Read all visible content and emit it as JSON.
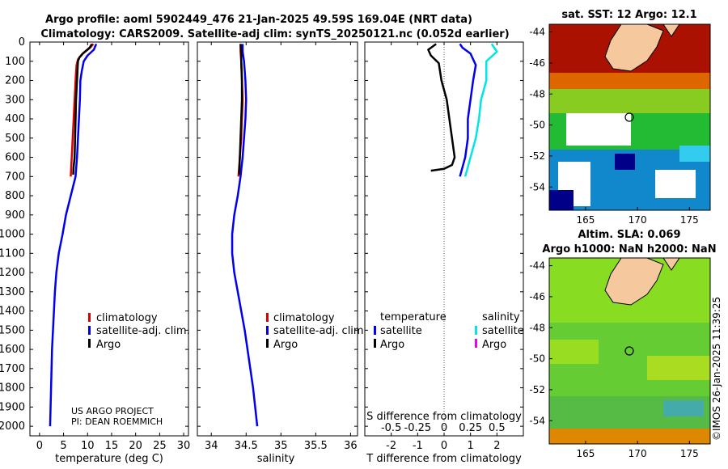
{
  "title": {
    "line1": "Argo profile: aoml 5902449_476 21-Jan-2025 49.59S 169.04E (NRT data)",
    "line2": "Climatology: CARS2009. Satellite-adj clim: synTS_20250121.nc (0.052d earlier)"
  },
  "depth_ticks": [
    "0",
    "100",
    "200",
    "300",
    "400",
    "500",
    "600",
    "700",
    "800",
    "900",
    "1000",
    "1100",
    "1200",
    "1300",
    "1400",
    "1500",
    "1600",
    "1700",
    "1800",
    "1900",
    "2000"
  ],
  "colors": {
    "climatology": "#dd0000",
    "satellite": "#0000ee",
    "argo": "#000000",
    "sat_sal": "#00e5e5",
    "argo_sal": "#ee00ee"
  },
  "credits": {
    "project": "US ARGO PROJECT",
    "pi": "PI: DEAN ROEMMICH"
  },
  "chart_data": [
    {
      "type": "line",
      "name": "temperature",
      "xlabel": "temperature (deg C)",
      "ylabel": "depth",
      "xlim": [
        -2,
        31
      ],
      "ylim": [
        2050,
        0
      ],
      "xticks": [
        "0",
        "5",
        "10",
        "15",
        "20",
        "25",
        "30"
      ],
      "legend": [
        "climatology",
        "satellite-adj. clim.",
        "Argo"
      ],
      "series": [
        {
          "name": "climatology",
          "color": "#dd0000",
          "points": [
            [
              11.2,
              10
            ],
            [
              10.5,
              30
            ],
            [
              9.0,
              60
            ],
            [
              8.0,
              90
            ],
            [
              7.7,
              120
            ],
            [
              7.5,
              200
            ],
            [
              7.3,
              300
            ],
            [
              7.1,
              400
            ],
            [
              6.9,
              500
            ],
            [
              6.7,
              600
            ],
            [
              6.5,
              700
            ]
          ]
        },
        {
          "name": "satellite-adj. clim.",
          "color": "#0000ee",
          "points": [
            [
              11.8,
              10
            ],
            [
              11.3,
              40
            ],
            [
              10.0,
              70
            ],
            [
              9.2,
              100
            ],
            [
              8.8,
              150
            ],
            [
              8.5,
              200
            ],
            [
              8.4,
              300
            ],
            [
              8.2,
              400
            ],
            [
              8.0,
              500
            ],
            [
              7.8,
              600
            ],
            [
              7.5,
              700
            ],
            [
              6.5,
              800
            ],
            [
              5.5,
              900
            ],
            [
              4.8,
              1000
            ],
            [
              4.0,
              1100
            ],
            [
              3.5,
              1200
            ],
            [
              3.2,
              1300
            ],
            [
              3.0,
              1400
            ],
            [
              2.8,
              1500
            ],
            [
              2.6,
              1600
            ],
            [
              2.5,
              1700
            ],
            [
              2.4,
              1800
            ],
            [
              2.3,
              1900
            ],
            [
              2.2,
              2000
            ]
          ]
        },
        {
          "name": "Argo",
          "color": "#000000",
          "points": [
            [
              10.9,
              10
            ],
            [
              10.4,
              30
            ],
            [
              9.0,
              60
            ],
            [
              8.3,
              80
            ],
            [
              8.0,
              100
            ],
            [
              7.9,
              150
            ],
            [
              7.8,
              200
            ],
            [
              7.6,
              300
            ],
            [
              7.5,
              400
            ],
            [
              7.4,
              500
            ],
            [
              7.3,
              600
            ],
            [
              7.1,
              650
            ],
            [
              7.0,
              690
            ]
          ]
        }
      ]
    },
    {
      "type": "line",
      "name": "salinity",
      "xlabel": "salinity",
      "ylabel": "depth",
      "xlim": [
        33.8,
        36.1
      ],
      "ylim": [
        2050,
        0
      ],
      "xticks": [
        "34",
        "34.5",
        "35",
        "35.5",
        "36"
      ],
      "legend": [
        "climatology",
        "satellite-adj. clim.",
        "Argo"
      ],
      "series": [
        {
          "name": "climatology",
          "color": "#dd0000",
          "points": [
            [
              34.42,
              10
            ],
            [
              34.42,
              50
            ],
            [
              34.43,
              100
            ],
            [
              34.44,
              200
            ],
            [
              34.45,
              300
            ],
            [
              34.44,
              400
            ],
            [
              34.43,
              500
            ],
            [
              34.41,
              600
            ],
            [
              34.39,
              700
            ]
          ]
        },
        {
          "name": "satellite-adj. clim.",
          "color": "#0000ee",
          "points": [
            [
              34.45,
              10
            ],
            [
              34.45,
              50
            ],
            [
              34.47,
              100
            ],
            [
              34.49,
              200
            ],
            [
              34.5,
              300
            ],
            [
              34.49,
              400
            ],
            [
              34.47,
              500
            ],
            [
              34.45,
              600
            ],
            [
              34.42,
              700
            ],
            [
              34.38,
              800
            ],
            [
              34.33,
              900
            ],
            [
              34.3,
              1000
            ],
            [
              34.3,
              1100
            ],
            [
              34.33,
              1200
            ],
            [
              34.38,
              1300
            ],
            [
              34.43,
              1400
            ],
            [
              34.48,
              1500
            ],
            [
              34.52,
              1600
            ],
            [
              34.56,
              1700
            ],
            [
              34.6,
              1800
            ],
            [
              34.63,
              1900
            ],
            [
              34.66,
              2000
            ]
          ]
        },
        {
          "name": "Argo",
          "color": "#000000",
          "points": [
            [
              34.42,
              10
            ],
            [
              34.43,
              50
            ],
            [
              34.43,
              100
            ],
            [
              34.44,
              200
            ],
            [
              34.44,
              300
            ],
            [
              34.43,
              400
            ],
            [
              34.42,
              500
            ],
            [
              34.41,
              600
            ],
            [
              34.4,
              690
            ]
          ]
        }
      ]
    },
    {
      "type": "line",
      "name": "difference from climatology",
      "xlabel": "T difference from climatology",
      "top_label": "S difference from climatology",
      "ylabel": "depth",
      "xlim": [
        -3,
        3
      ],
      "ylim": [
        2050,
        0
      ],
      "xticks": [
        "-2",
        "-1",
        "0",
        "1",
        "2"
      ],
      "s_xticks": [
        "-0.5",
        "-0.25",
        "0",
        "0.25",
        "0.5"
      ],
      "legend_left_title": "temperature",
      "legend_right_title": "salinity",
      "legend_left": [
        "satellite",
        "Argo"
      ],
      "legend_right": [
        "satellite",
        "Argo"
      ],
      "series": [
        {
          "name": "temperature satellite",
          "color": "#0000ee",
          "points": [
            [
              0.6,
              10
            ],
            [
              0.7,
              30
            ],
            [
              1.0,
              60
            ],
            [
              1.1,
              90
            ],
            [
              1.2,
              120
            ],
            [
              1.1,
              200
            ],
            [
              1.0,
              300
            ],
            [
              0.9,
              400
            ],
            [
              0.9,
              500
            ],
            [
              0.8,
              600
            ],
            [
              0.6,
              700
            ]
          ]
        },
        {
          "name": "temperature Argo",
          "color": "#000000",
          "points": [
            [
              -0.3,
              10
            ],
            [
              -0.6,
              40
            ],
            [
              -0.5,
              70
            ],
            [
              -0.2,
              110
            ],
            [
              -0.1,
              200
            ],
            [
              0.1,
              300
            ],
            [
              0.2,
              400
            ],
            [
              0.3,
              500
            ],
            [
              0.4,
              600
            ],
            [
              0.3,
              640
            ],
            [
              0.0,
              660
            ],
            [
              -0.5,
              670
            ]
          ]
        },
        {
          "name": "salinity satellite",
          "color": "#00e5e5",
          "points": [
            [
              0.45,
              10
            ],
            [
              0.5,
              50
            ],
            [
              0.4,
              100
            ],
            [
              0.4,
              200
            ],
            [
              0.35,
              300
            ],
            [
              0.33,
              400
            ],
            [
              0.3,
              500
            ],
            [
              0.25,
              600
            ],
            [
              0.2,
              700
            ]
          ]
        }
      ]
    }
  ],
  "maps": {
    "sst_title": "sat. SST: 12 Argo: 12.1",
    "sla_title_line1": "Altim. SLA: 0.069",
    "sla_title_line2": "Argo h1000: NaN h2000: NaN",
    "lat_ticks": [
      "-44",
      "-46",
      "-48",
      "-50",
      "-52",
      "-54"
    ],
    "lon_ticks": [
      "165",
      "170",
      "175"
    ],
    "watermark": "©IMOS 26-Jan-2025 11:39:25"
  }
}
